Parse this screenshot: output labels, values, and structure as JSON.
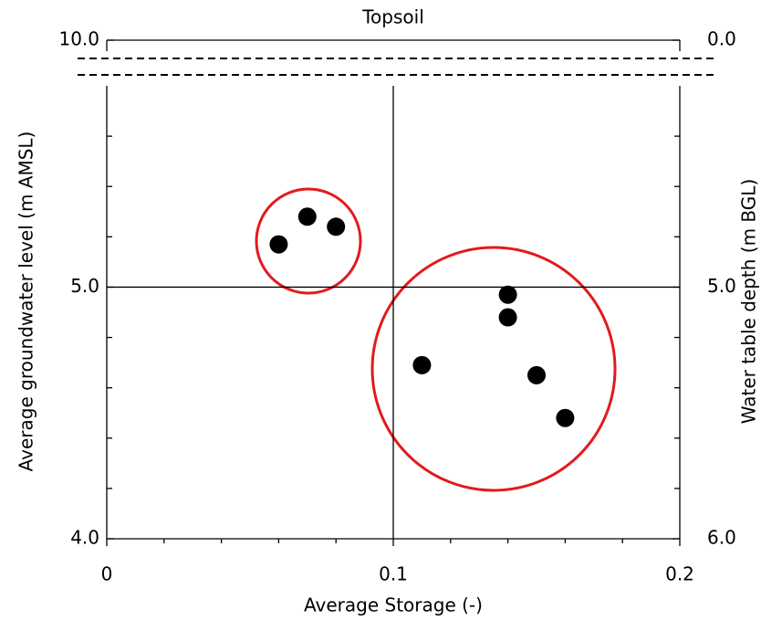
{
  "chart_data": {
    "type": "scatter",
    "title": "Topsoil",
    "xlabel": "Average Storage (-)",
    "ylabel": "Average groundwater level (m AMSL)",
    "y2label": "Water table depth (m BGL)",
    "x": [
      0.06,
      0.07,
      0.08,
      0.14,
      0.14,
      0.11,
      0.15,
      0.16
    ],
    "series": [
      {
        "values": [
          5.17,
          5.28,
          5.24,
          4.97,
          4.88,
          4.69,
          4.65,
          4.48
        ],
        "color": "#000000"
      }
    ],
    "xlim": [
      0,
      0.2
    ],
    "xticks": [
      0,
      0.1,
      0.2
    ],
    "minor_xticks": [
      0.02,
      0.04,
      0.06,
      0.08,
      0.12,
      0.14,
      0.16,
      0.18
    ],
    "ylim": [
      4,
      10
    ],
    "ybreak": [
      5.8,
      10
    ],
    "yticks": [
      {
        "value": 4,
        "label": "4.0"
      },
      {
        "value": 5,
        "label": "5.0"
      },
      {
        "value": 10,
        "label": "10.0"
      }
    ],
    "minor_yticks": [
      4.2,
      4.4,
      4.6,
      4.8,
      5.2,
      5.4,
      5.6
    ],
    "y2lim": [
      6,
      0
    ],
    "y2break": [
      4.2,
      0
    ],
    "y2ticks": [
      {
        "value": 6,
        "label": "6.0"
      },
      {
        "value": 5,
        "label": "5.0"
      },
      {
        "value": 0,
        "label": "0.0"
      }
    ],
    "grid": true
  }
}
